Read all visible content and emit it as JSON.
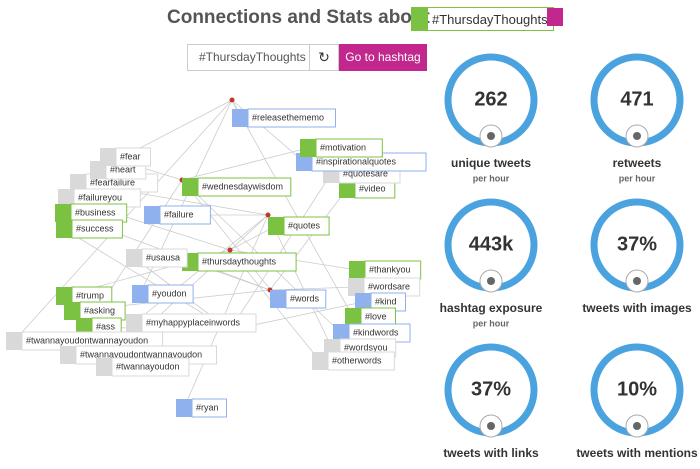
{
  "header": {
    "title": "Connections and Stats about",
    "hashtag": "#ThursdayThoughts"
  },
  "search": {
    "input": "#ThursdayThoughts",
    "button": "Go to hashtag"
  },
  "graph": {
    "nodes": [
      {
        "label": "#releasethememo",
        "kind": "b"
      },
      {
        "label": "#wednesdaywisdom",
        "kind": "g"
      },
      {
        "label": "#failure",
        "kind": "b"
      },
      {
        "label": "#quotes",
        "kind": "g"
      },
      {
        "label": "#thursdaythoughts",
        "kind": "g"
      },
      {
        "label": "#usausa",
        "kind": "x"
      },
      {
        "label": "#youdon",
        "kind": "b"
      },
      {
        "label": "#words",
        "kind": "b"
      },
      {
        "label": "#myhappyplaceinwords",
        "kind": "x"
      },
      {
        "label": "#trump",
        "kind": "g"
      },
      {
        "label": "#asking",
        "kind": "g"
      },
      {
        "label": "#ass",
        "kind": "g"
      },
      {
        "label": "#twannayoudontwannayoudon",
        "kind": "x"
      },
      {
        "label": "#twannayoudontwannayoudon",
        "kind": "x"
      },
      {
        "label": "#twannayoudon",
        "kind": "x"
      },
      {
        "label": "#thankyou",
        "kind": "g"
      },
      {
        "label": "#wordsare",
        "kind": "x"
      },
      {
        "label": "#kind",
        "kind": "b"
      },
      {
        "label": "#love",
        "kind": "g"
      },
      {
        "label": "#kindwords",
        "kind": "b"
      },
      {
        "label": "#wordsyou",
        "kind": "x"
      },
      {
        "label": "#otherwords",
        "kind": "x"
      },
      {
        "label": "#video",
        "kind": "g"
      },
      {
        "label": "#quotesare",
        "kind": "x"
      },
      {
        "label": "#inspirationalquotes",
        "kind": "b"
      },
      {
        "label": "#motivation",
        "kind": "g"
      },
      {
        "label": "#fearfailure",
        "kind": "x"
      },
      {
        "label": "#failureyou",
        "kind": "x"
      },
      {
        "label": "#business",
        "kind": "g"
      },
      {
        "label": "#success",
        "kind": "g"
      },
      {
        "label": "#heart",
        "kind": "x"
      },
      {
        "label": "#fear",
        "kind": "x"
      },
      {
        "label": "#ryan",
        "kind": "b"
      }
    ]
  },
  "stats": [
    {
      "value": "262",
      "label": "unique tweets",
      "sub": "per hour"
    },
    {
      "value": "471",
      "label": "retweets",
      "sub": "per hour"
    },
    {
      "value": "443k",
      "label": "hashtag exposure",
      "sub": "per hour"
    },
    {
      "value": "37%",
      "label": "tweets with images"
    },
    {
      "value": "37%",
      "label": "tweets with links"
    },
    {
      "value": "10%",
      "label": "tweets with mentions"
    }
  ]
}
